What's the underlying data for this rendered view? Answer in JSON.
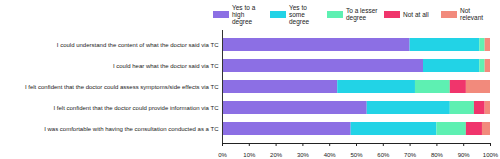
{
  "chart_data": {
    "type": "bar",
    "orientation": "horizontal",
    "stacked": true,
    "legend": "top-right",
    "categories": [
      "I could understand the content of what the doctor said via TC",
      "I could hear what the doctor said via TC",
      "I felt confident that the doctor could assess symptoms/side effects via TC",
      "I felt confident that the doctor could provide information via TC",
      "I was comfortable with having the consultation conducted as a TC"
    ],
    "series": [
      {
        "name": "Yes to a high degree",
        "color": "#8c6fe4",
        "values": [
          70,
          75,
          43,
          54,
          48
        ]
      },
      {
        "name": "Yes to some degree",
        "color": "#22d3e6",
        "values": [
          26,
          21,
          29,
          31,
          32
        ]
      },
      {
        "name": "To a lesser degree",
        "color": "#5ef0b2",
        "values": [
          2,
          2,
          13,
          9,
          11
        ]
      },
      {
        "name": "Not at all",
        "color": "#f0356c",
        "values": [
          0,
          0,
          6,
          4,
          6
        ]
      },
      {
        "name": "Not relevant",
        "color": "#f28a7c",
        "values": [
          2,
          2,
          9,
          2,
          3
        ]
      }
    ],
    "xlim": [
      0,
      100
    ],
    "xticks": [
      {
        "value": 0,
        "label": "0%"
      },
      {
        "value": 10,
        "label": "10%"
      },
      {
        "value": 20,
        "label": "20%"
      },
      {
        "value": 30,
        "label": "30%"
      },
      {
        "value": 40,
        "label": "40%"
      },
      {
        "value": 50,
        "label": "50%"
      },
      {
        "value": 60,
        "label": "60%"
      },
      {
        "value": 70,
        "label": "70%"
      },
      {
        "value": 80,
        "label": "80%"
      },
      {
        "value": 90,
        "label": "90%"
      },
      {
        "value": 100,
        "label": "100%"
      }
    ],
    "grid": false
  }
}
